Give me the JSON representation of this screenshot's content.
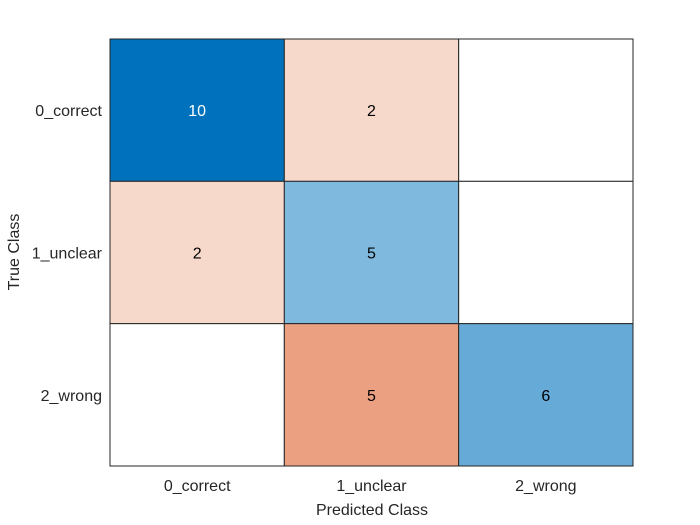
{
  "chart_data": {
    "type": "heatmap",
    "title": "",
    "xlabel": "Predicted Class",
    "ylabel": "True Class",
    "x_categories": [
      "0_correct",
      "1_unclear",
      "2_wrong"
    ],
    "y_categories": [
      "0_correct",
      "1_unclear",
      "2_wrong"
    ],
    "values": [
      [
        10,
        2,
        null
      ],
      [
        2,
        5,
        null
      ],
      [
        null,
        5,
        6
      ]
    ],
    "grid": true,
    "colors": {
      "diagonal_max": "#0072BD",
      "diagonal_min": "#FFFFFF",
      "offdiagonal_max": "#D95319",
      "offdiagonal_min": "#FFFFFF",
      "empty": "#FFFFFF",
      "cell_border": "#262626",
      "light_text": "#FFFFFF",
      "dark_text": "#000000",
      "label_text": "#262626"
    }
  }
}
